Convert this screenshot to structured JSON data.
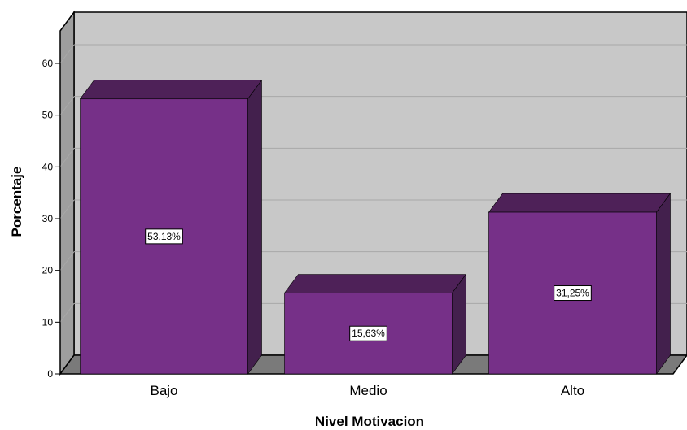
{
  "chart_data": {
    "type": "bar",
    "categories": [
      "Bajo",
      "Medio",
      "Alto"
    ],
    "values": [
      53.13,
      15.63,
      31.25
    ],
    "data_labels": [
      "53,13%",
      "15,63%",
      "31,25%"
    ],
    "xlabel": "Nivel Motivacion",
    "ylabel": "Porcentaje",
    "ylim": [
      0,
      60
    ],
    "yticks": [
      0,
      10,
      20,
      30,
      40,
      50,
      60
    ],
    "grid": true,
    "bar_color": "#763088",
    "bar_top_color": "#4e2158",
    "bar_side_color": "#43204d",
    "wall_color": "#c8c8c8",
    "floor_color": "#7a7a7a",
    "wall_side_color": "#9e9e9e"
  }
}
